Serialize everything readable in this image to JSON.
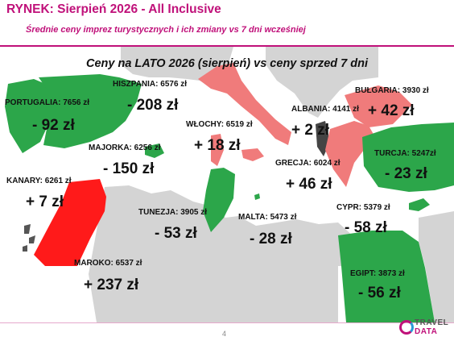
{
  "header": {
    "title": "RYNEK: Sierpień 2026 - All Inclusive",
    "subtitle": "Średnie ceny imprez turystycznych i ich zmiany vs 7 dni wcześniej"
  },
  "map": {
    "title": "Ceny na LATO 2026 (sierpień) vs ceny sprzed 7 dni",
    "colors": {
      "increase": "#f07b7b",
      "strong_increase": "#ff1a1a",
      "decrease": "#2ca64a",
      "land": "#d4d4d4",
      "sea": "#ffffff",
      "albania": "#444444"
    },
    "destinations": [
      {
        "name": "PORTUGALIA",
        "label": "PORTUGALIA: 7656 zł",
        "change": "- 92 zł"
      },
      {
        "name": "HISZPANIA",
        "label": "HISZPANIA: 6576 zł",
        "change": "- 208 zł"
      },
      {
        "name": "WŁOCHY",
        "label": "WŁOCHY: 6519 zł",
        "change": "+ 18 zł"
      },
      {
        "name": "ALBANIA",
        "label": "ALBANIA: 4141 zł",
        "change": "+ 2 zł"
      },
      {
        "name": "BUŁGARIA",
        "label": "BUŁGARIA: 3930 zł",
        "change": "+ 42 zł"
      },
      {
        "name": "MAJORKA",
        "label": "MAJORKA: 6256 zł",
        "change": "- 150 zł"
      },
      {
        "name": "TURCJA",
        "label": "TURCJA: 5247zł",
        "change": "- 23 zł"
      },
      {
        "name": "KANARY",
        "label": "KANARY: 6261 zł",
        "change": "+ 7 zł"
      },
      {
        "name": "GRECJA",
        "label": "GRECJA: 6024 zł",
        "change": "+ 46 zł"
      },
      {
        "name": "TUNEZJA",
        "label": "TUNEZJA: 3905 zł",
        "change": "- 53 zł"
      },
      {
        "name": "MALTA",
        "label": "MALTA: 5473 zł",
        "change": "- 28 zł"
      },
      {
        "name": "CYPR",
        "label": "CYPR: 5379 zł",
        "change": "- 58 zł"
      },
      {
        "name": "MAROKO",
        "label": "MAROKO: 6537 zł",
        "change": "+ 237 zł"
      },
      {
        "name": "EGIPT",
        "label": "EGIPT: 3873 zł",
        "change": "- 56 zł"
      }
    ]
  },
  "footer": {
    "page_number": "4",
    "logo_line1": "TRAVEL",
    "logo_line2": "DATA"
  }
}
